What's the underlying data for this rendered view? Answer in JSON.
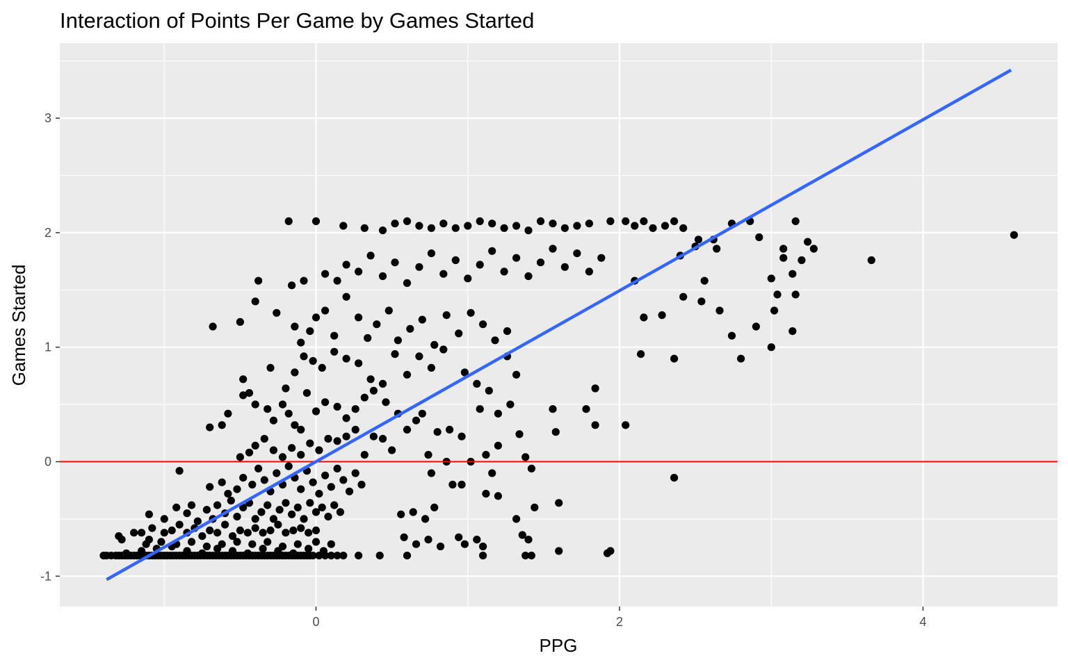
{
  "chart_data": {
    "type": "scatter",
    "title": "Interaction of Points Per Game by Games Started",
    "xlabel": "PPG",
    "ylabel": "Games Started",
    "xlim": [
      -1.7,
      4.9
    ],
    "ylim": [
      -1.25,
      3.5
    ],
    "x_ticks": [
      0,
      2,
      4
    ],
    "x_tick_labels": [
      "0",
      "2",
      "4"
    ],
    "y_ticks": [
      -1,
      0,
      1,
      2,
      3
    ],
    "y_tick_labels": [
      "-1",
      "0",
      "1",
      "2",
      "3"
    ],
    "grid": true,
    "legend": "none",
    "colors": {
      "panel": "#ebebeb",
      "grid": "#ffffff",
      "points": "#000000",
      "fit_line": "#3366ff",
      "reference_line": "#ff0000"
    },
    "reference_line": {
      "y": 0
    },
    "fit_line": {
      "x": [
        -1.38,
        4.58
      ],
      "y": [
        -1.03,
        3.42
      ]
    },
    "points": [
      [
        -1.4,
        -0.82
      ],
      [
        -1.38,
        -0.82
      ],
      [
        -1.35,
        -0.82
      ],
      [
        -1.32,
        -0.82
      ],
      [
        -1.3,
        -0.82
      ],
      [
        -1.28,
        -0.82
      ],
      [
        -1.26,
        -0.82
      ],
      [
        -1.24,
        -0.82
      ],
      [
        -1.22,
        -0.82
      ],
      [
        -1.2,
        -0.82
      ],
      [
        -1.18,
        -0.82
      ],
      [
        -1.16,
        -0.82
      ],
      [
        -1.14,
        -0.82
      ],
      [
        -1.12,
        -0.82
      ],
      [
        -1.1,
        -0.82
      ],
      [
        -1.08,
        -0.82
      ],
      [
        -1.06,
        -0.82
      ],
      [
        -1.04,
        -0.82
      ],
      [
        -1.02,
        -0.82
      ],
      [
        -1.0,
        -0.82
      ],
      [
        -0.98,
        -0.82
      ],
      [
        -0.96,
        -0.82
      ],
      [
        -0.94,
        -0.82
      ],
      [
        -0.92,
        -0.82
      ],
      [
        -0.9,
        -0.82
      ],
      [
        -0.88,
        -0.82
      ],
      [
        -0.86,
        -0.82
      ],
      [
        -0.84,
        -0.82
      ],
      [
        -0.82,
        -0.82
      ],
      [
        -0.8,
        -0.82
      ],
      [
        -0.78,
        -0.82
      ],
      [
        -0.76,
        -0.82
      ],
      [
        -0.74,
        -0.82
      ],
      [
        -0.72,
        -0.82
      ],
      [
        -0.7,
        -0.82
      ],
      [
        -0.68,
        -0.82
      ],
      [
        -0.66,
        -0.82
      ],
      [
        -0.64,
        -0.82
      ],
      [
        -0.62,
        -0.82
      ],
      [
        -0.6,
        -0.82
      ],
      [
        -0.58,
        -0.82
      ],
      [
        -0.56,
        -0.82
      ],
      [
        -0.54,
        -0.82
      ],
      [
        -0.52,
        -0.82
      ],
      [
        -0.5,
        -0.82
      ],
      [
        -0.48,
        -0.82
      ],
      [
        -0.46,
        -0.82
      ],
      [
        -0.44,
        -0.82
      ],
      [
        -0.42,
        -0.82
      ],
      [
        -0.4,
        -0.82
      ],
      [
        -0.38,
        -0.82
      ],
      [
        -0.36,
        -0.82
      ],
      [
        -0.34,
        -0.82
      ],
      [
        -0.32,
        -0.82
      ],
      [
        -0.3,
        -0.82
      ],
      [
        -0.28,
        -0.82
      ],
      [
        -0.26,
        -0.82
      ],
      [
        -0.24,
        -0.82
      ],
      [
        -0.22,
        -0.82
      ],
      [
        -0.2,
        -0.82
      ],
      [
        -0.18,
        -0.82
      ],
      [
        -0.16,
        -0.82
      ],
      [
        -0.14,
        -0.82
      ],
      [
        -0.12,
        -0.82
      ],
      [
        -0.1,
        -0.82
      ],
      [
        -0.08,
        -0.82
      ],
      [
        -0.06,
        -0.82
      ],
      [
        -0.04,
        -0.82
      ],
      [
        -0.02,
        -0.82
      ],
      [
        0.02,
        -0.82
      ],
      [
        0.06,
        -0.82
      ],
      [
        0.1,
        -0.82
      ],
      [
        0.14,
        -0.82
      ],
      [
        0.18,
        -0.82
      ],
      [
        0.28,
        -0.82
      ],
      [
        0.42,
        -0.82
      ],
      [
        0.6,
        -0.82
      ],
      [
        1.1,
        -0.82
      ],
      [
        1.38,
        -0.82
      ],
      [
        1.42,
        -0.82
      ],
      [
        1.6,
        -0.78
      ],
      [
        1.92,
        -0.8
      ],
      [
        1.94,
        -0.78
      ],
      [
        -1.25,
        -0.8
      ],
      [
        -1.15,
        -0.78
      ],
      [
        -1.05,
        -0.76
      ],
      [
        -0.95,
        -0.74
      ],
      [
        -0.85,
        -0.78
      ],
      [
        -0.75,
        -0.8
      ],
      [
        -0.65,
        -0.76
      ],
      [
        -0.55,
        -0.78
      ],
      [
        -0.45,
        -0.8
      ],
      [
        -0.35,
        -0.76
      ],
      [
        -0.25,
        -0.78
      ],
      [
        -0.15,
        -0.8
      ],
      [
        -0.05,
        -0.76
      ],
      [
        0.05,
        -0.78
      ],
      [
        -1.12,
        -0.72
      ],
      [
        -1.02,
        -0.7
      ],
      [
        -0.92,
        -0.72
      ],
      [
        -0.82,
        -0.7
      ],
      [
        -0.72,
        -0.74
      ],
      [
        -0.62,
        -0.72
      ],
      [
        -0.52,
        -0.7
      ],
      [
        -0.42,
        -0.72
      ],
      [
        -0.32,
        -0.7
      ],
      [
        -0.22,
        -0.74
      ],
      [
        -0.12,
        -0.72
      ],
      [
        0.0,
        -0.7
      ],
      [
        0.1,
        -0.72
      ],
      [
        -1.3,
        -0.65
      ],
      [
        -1.28,
        -0.68
      ],
      [
        -1.2,
        -0.62
      ],
      [
        -1.15,
        -0.62
      ],
      [
        -1.1,
        -0.68
      ],
      [
        -1.08,
        -0.58
      ],
      [
        -1.0,
        -0.62
      ],
      [
        -0.95,
        -0.6
      ],
      [
        -0.9,
        -0.55
      ],
      [
        -0.85,
        -0.62
      ],
      [
        -0.8,
        -0.58
      ],
      [
        -0.75,
        -0.65
      ],
      [
        -0.7,
        -0.6
      ],
      [
        -0.65,
        -0.62
      ],
      [
        -0.6,
        -0.55
      ],
      [
        -0.55,
        -0.65
      ],
      [
        -0.5,
        -0.6
      ],
      [
        -0.45,
        -0.62
      ],
      [
        -0.4,
        -0.58
      ],
      [
        -0.35,
        -0.62
      ],
      [
        -0.3,
        -0.6
      ],
      [
        -0.25,
        -0.55
      ],
      [
        -0.2,
        -0.62
      ],
      [
        -0.15,
        -0.6
      ],
      [
        -0.1,
        -0.58
      ],
      [
        -0.05,
        -0.62
      ],
      [
        0.0,
        -0.6
      ],
      [
        -1.1,
        -0.46
      ],
      [
        -1.0,
        -0.5
      ],
      [
        -0.92,
        -0.4
      ],
      [
        -0.85,
        -0.45
      ],
      [
        -0.82,
        -0.38
      ],
      [
        -0.78,
        -0.52
      ],
      [
        -0.72,
        -0.42
      ],
      [
        -0.68,
        -0.5
      ],
      [
        -0.65,
        -0.38
      ],
      [
        -0.6,
        -0.45
      ],
      [
        -0.56,
        -0.34
      ],
      [
        -0.52,
        -0.48
      ],
      [
        -0.48,
        -0.4
      ],
      [
        -0.44,
        -0.36
      ],
      [
        -0.4,
        -0.5
      ],
      [
        -0.36,
        -0.44
      ],
      [
        -0.32,
        -0.38
      ],
      [
        -0.28,
        -0.5
      ],
      [
        -0.24,
        -0.42
      ],
      [
        -0.2,
        -0.36
      ],
      [
        -0.16,
        -0.46
      ],
      [
        -0.12,
        -0.4
      ],
      [
        -0.08,
        -0.5
      ],
      [
        -0.04,
        -0.36
      ],
      [
        0.0,
        -0.44
      ],
      [
        0.04,
        -0.4
      ],
      [
        0.08,
        -0.48
      ],
      [
        0.12,
        -0.38
      ],
      [
        0.16,
        -0.44
      ],
      [
        -0.9,
        -0.08
      ],
      [
        -0.7,
        -0.22
      ],
      [
        -0.62,
        -0.18
      ],
      [
        -0.58,
        -0.28
      ],
      [
        -0.52,
        -0.24
      ],
      [
        -0.48,
        -0.14
      ],
      [
        -0.42,
        -0.2
      ],
      [
        -0.38,
        -0.06
      ],
      [
        -0.34,
        -0.16
      ],
      [
        -0.3,
        -0.26
      ],
      [
        -0.26,
        -0.1
      ],
      [
        -0.22,
        -0.2
      ],
      [
        -0.18,
        -0.04
      ],
      [
        -0.14,
        -0.14
      ],
      [
        -0.1,
        -0.24
      ],
      [
        -0.06,
        -0.08
      ],
      [
        -0.02,
        -0.18
      ],
      [
        0.02,
        -0.28
      ],
      [
        0.06,
        -0.12
      ],
      [
        0.1,
        -0.22
      ],
      [
        0.14,
        -0.06
      ],
      [
        0.18,
        -0.16
      ],
      [
        0.22,
        -0.26
      ],
      [
        0.26,
        -0.1
      ],
      [
        0.3,
        -0.2
      ],
      [
        -0.5,
        0.04
      ],
      [
        -0.44,
        0.08
      ],
      [
        -0.4,
        0.14
      ],
      [
        -0.34,
        0.2
      ],
      [
        -0.28,
        0.1
      ],
      [
        -0.22,
        0.04
      ],
      [
        -0.16,
        0.12
      ],
      [
        -0.1,
        0.06
      ],
      [
        -0.04,
        0.16
      ],
      [
        0.02,
        0.1
      ],
      [
        0.08,
        0.2
      ],
      [
        0.14,
        0.18
      ],
      [
        0.2,
        0.22
      ],
      [
        0.26,
        0.28
      ],
      [
        0.32,
        0.06
      ],
      [
        0.38,
        0.22
      ],
      [
        0.44,
        0.2
      ],
      [
        0.5,
        0.1
      ],
      [
        -0.7,
        0.3
      ],
      [
        -0.62,
        0.32
      ],
      [
        -0.58,
        0.42
      ],
      [
        -0.48,
        0.58
      ],
      [
        -0.44,
        0.6
      ],
      [
        -0.4,
        0.5
      ],
      [
        -0.32,
        0.46
      ],
      [
        -0.28,
        0.36
      ],
      [
        -0.22,
        0.5
      ],
      [
        -0.18,
        0.42
      ],
      [
        -0.14,
        0.32
      ],
      [
        -0.1,
        0.28
      ],
      [
        -0.06,
        0.6
      ],
      [
        0.0,
        0.44
      ],
      [
        0.06,
        0.52
      ],
      [
        0.14,
        0.48
      ],
      [
        0.2,
        0.38
      ],
      [
        0.26,
        0.46
      ],
      [
        0.32,
        0.56
      ],
      [
        0.38,
        0.62
      ],
      [
        0.46,
        0.52
      ],
      [
        0.54,
        0.42
      ],
      [
        0.6,
        0.28
      ],
      [
        0.66,
        0.36
      ],
      [
        -0.48,
        0.72
      ],
      [
        -0.3,
        0.82
      ],
      [
        -0.2,
        0.64
      ],
      [
        -0.14,
        0.78
      ],
      [
        -0.08,
        0.92
      ],
      [
        -0.02,
        0.88
      ],
      [
        0.04,
        0.82
      ],
      [
        0.12,
        0.96
      ],
      [
        0.2,
        0.9
      ],
      [
        0.28,
        0.86
      ],
      [
        0.36,
        0.72
      ],
      [
        0.44,
        0.68
      ],
      [
        0.52,
        0.94
      ],
      [
        0.6,
        0.76
      ],
      [
        0.68,
        0.92
      ],
      [
        0.76,
        0.82
      ],
      [
        0.84,
        0.98
      ],
      [
        -0.68,
        1.18
      ],
      [
        -0.5,
        1.22
      ],
      [
        -0.4,
        1.4
      ],
      [
        -0.26,
        1.3
      ],
      [
        -0.14,
        1.18
      ],
      [
        -0.1,
        1.04
      ],
      [
        -0.04,
        1.14
      ],
      [
        0.0,
        1.26
      ],
      [
        0.06,
        1.32
      ],
      [
        0.12,
        1.1
      ],
      [
        0.2,
        1.44
      ],
      [
        0.28,
        1.26
      ],
      [
        0.34,
        1.08
      ],
      [
        0.4,
        1.2
      ],
      [
        0.48,
        1.32
      ],
      [
        0.54,
        1.06
      ],
      [
        0.62,
        1.16
      ],
      [
        0.7,
        1.24
      ],
      [
        0.78,
        1.02
      ],
      [
        0.86,
        1.28
      ],
      [
        0.94,
        1.12
      ],
      [
        1.02,
        1.3
      ],
      [
        1.1,
        1.2
      ],
      [
        1.18,
        1.06
      ],
      [
        1.26,
        1.14
      ],
      [
        -0.38,
        1.58
      ],
      [
        -0.16,
        1.54
      ],
      [
        -0.08,
        1.58
      ],
      [
        0.06,
        1.64
      ],
      [
        0.14,
        1.58
      ],
      [
        0.2,
        1.72
      ],
      [
        0.28,
        1.66
      ],
      [
        0.36,
        1.8
      ],
      [
        0.44,
        1.62
      ],
      [
        0.52,
        1.74
      ],
      [
        0.6,
        1.56
      ],
      [
        0.68,
        1.7
      ],
      [
        0.76,
        1.82
      ],
      [
        0.84,
        1.64
      ],
      [
        0.92,
        1.76
      ],
      [
        1.0,
        1.6
      ],
      [
        1.08,
        1.72
      ],
      [
        1.16,
        1.84
      ],
      [
        1.24,
        1.66
      ],
      [
        1.32,
        1.78
      ],
      [
        1.4,
        1.62
      ],
      [
        1.48,
        1.74
      ],
      [
        1.56,
        1.86
      ],
      [
        1.64,
        1.7
      ],
      [
        1.72,
        1.82
      ],
      [
        1.8,
        1.66
      ],
      [
        1.88,
        1.78
      ],
      [
        -0.18,
        2.1
      ],
      [
        0.0,
        2.1
      ],
      [
        0.18,
        2.06
      ],
      [
        0.32,
        2.04
      ],
      [
        0.44,
        2.02
      ],
      [
        0.52,
        2.08
      ],
      [
        0.6,
        2.1
      ],
      [
        0.68,
        2.06
      ],
      [
        0.76,
        2.04
      ],
      [
        0.84,
        2.08
      ],
      [
        0.92,
        2.04
      ],
      [
        1.0,
        2.06
      ],
      [
        1.08,
        2.1
      ],
      [
        1.16,
        2.08
      ],
      [
        1.24,
        2.04
      ],
      [
        1.32,
        2.06
      ],
      [
        1.4,
        2.02
      ],
      [
        1.48,
        2.1
      ],
      [
        1.56,
        2.08
      ],
      [
        1.64,
        2.04
      ],
      [
        1.72,
        2.06
      ],
      [
        1.8,
        2.08
      ],
      [
        1.94,
        2.1
      ],
      [
        2.04,
        2.1
      ],
      [
        2.1,
        2.06
      ],
      [
        2.16,
        2.1
      ],
      [
        2.22,
        2.04
      ],
      [
        2.3,
        2.06
      ],
      [
        2.36,
        2.1
      ],
      [
        2.42,
        2.04
      ],
      [
        2.52,
        1.94
      ],
      [
        2.62,
        1.94
      ],
      [
        2.74,
        2.08
      ],
      [
        2.86,
        2.1
      ],
      [
        2.92,
        1.96
      ],
      [
        3.16,
        2.1
      ],
      [
        3.24,
        1.92
      ],
      [
        3.28,
        1.86
      ],
      [
        2.4,
        1.8
      ],
      [
        2.5,
        1.88
      ],
      [
        2.64,
        1.86
      ],
      [
        3.08,
        1.86
      ],
      [
        3.08,
        1.78
      ],
      [
        3.2,
        1.76
      ],
      [
        3.0,
        1.6
      ],
      [
        3.04,
        1.46
      ],
      [
        3.16,
        1.46
      ],
      [
        3.14,
        1.64
      ],
      [
        3.66,
        1.76
      ],
      [
        4.6,
        1.98
      ],
      [
        2.1,
        1.58
      ],
      [
        2.16,
        1.26
      ],
      [
        2.28,
        1.28
      ],
      [
        2.42,
        1.44
      ],
      [
        2.54,
        1.4
      ],
      [
        2.56,
        1.58
      ],
      [
        2.66,
        1.32
      ],
      [
        2.74,
        1.1
      ],
      [
        3.02,
        1.32
      ],
      [
        3.14,
        1.14
      ],
      [
        2.9,
        1.18
      ],
      [
        3.0,
        1.0
      ],
      [
        2.8,
        0.9
      ],
      [
        2.36,
        0.9
      ],
      [
        2.14,
        0.94
      ],
      [
        1.26,
        0.92
      ],
      [
        1.32,
        0.76
      ],
      [
        1.14,
        0.62
      ],
      [
        1.08,
        0.46
      ],
      [
        1.2,
        0.42
      ],
      [
        1.28,
        0.5
      ],
      [
        1.56,
        0.46
      ],
      [
        1.58,
        0.26
      ],
      [
        1.78,
        0.46
      ],
      [
        1.84,
        0.64
      ],
      [
        1.84,
        0.32
      ],
      [
        2.04,
        0.32
      ],
      [
        1.06,
        0.68
      ],
      [
        0.98,
        0.78
      ],
      [
        0.7,
        0.42
      ],
      [
        0.8,
        0.26
      ],
      [
        0.88,
        0.28
      ],
      [
        0.96,
        0.22
      ],
      [
        1.02,
        0.0
      ],
      [
        1.12,
        0.06
      ],
      [
        1.2,
        0.14
      ],
      [
        1.34,
        0.24
      ],
      [
        1.38,
        0.04
      ],
      [
        1.42,
        -0.06
      ],
      [
        0.74,
        0.06
      ],
      [
        0.86,
        0.0
      ],
      [
        0.76,
        -0.1
      ],
      [
        0.9,
        -0.2
      ],
      [
        0.96,
        -0.2
      ],
      [
        1.12,
        -0.28
      ],
      [
        1.16,
        -0.1
      ],
      [
        1.2,
        -0.3
      ],
      [
        0.78,
        -0.4
      ],
      [
        0.72,
        -0.5
      ],
      [
        0.56,
        -0.46
      ],
      [
        0.64,
        -0.44
      ],
      [
        1.32,
        -0.5
      ],
      [
        1.44,
        -0.4
      ],
      [
        1.6,
        -0.36
      ],
      [
        2.36,
        -0.14
      ],
      [
        0.74,
        -0.68
      ],
      [
        0.82,
        -0.74
      ],
      [
        0.94,
        -0.66
      ],
      [
        0.98,
        -0.72
      ],
      [
        1.06,
        -0.68
      ],
      [
        1.1,
        -0.74
      ],
      [
        1.36,
        -0.64
      ],
      [
        1.4,
        -0.68
      ],
      [
        0.58,
        -0.66
      ],
      [
        0.66,
        -0.72
      ]
    ]
  }
}
